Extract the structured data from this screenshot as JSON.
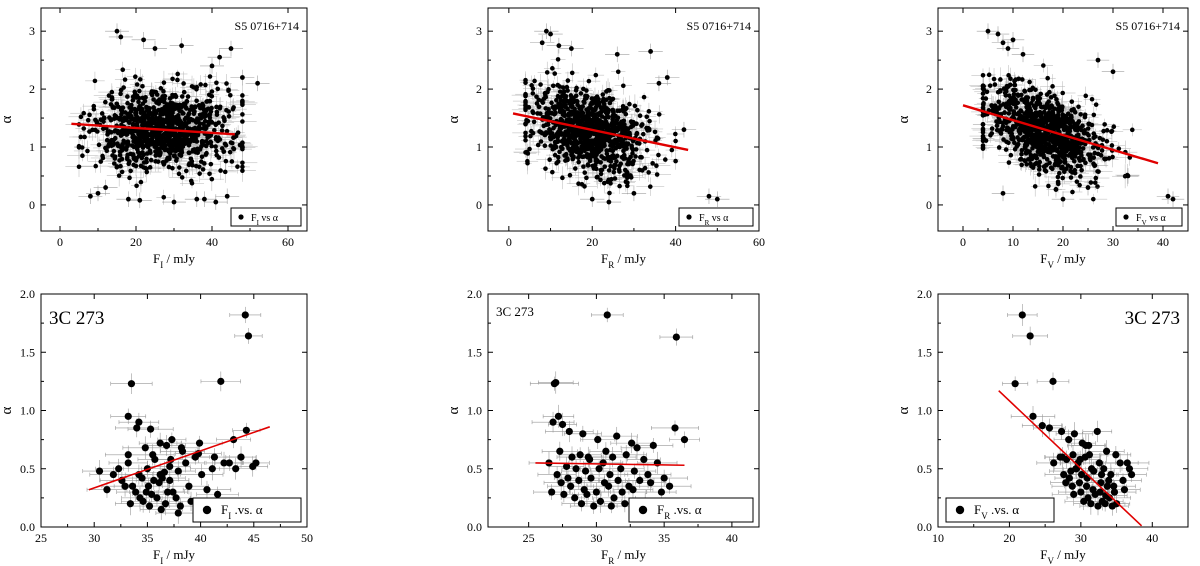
{
  "chart_data": [
    {
      "type": "scatter",
      "label": "S5 0716+714",
      "xlabel": "F_I / mJy",
      "ylabel": "α",
      "xlim": [
        -5,
        65
      ],
      "ylim": [
        -0.45,
        3.4
      ],
      "xticks": [
        0,
        20,
        40,
        60
      ],
      "yticks": [
        0,
        1,
        2,
        3
      ],
      "legend": {
        "marker": "F_I vs α",
        "placement": "bottom-right"
      },
      "cloud": {
        "n": 950,
        "x_center": 27,
        "x_sd": 9,
        "x_min": 5,
        "x_max": 48,
        "y_center": 1.3,
        "y_sd": 0.35,
        "y_min": 0.1,
        "y_max": 2.7,
        "slope": 0,
        "x_err": 3,
        "y_err": 0.15
      },
      "points": {
        "x": [
          15,
          16,
          22,
          25,
          32,
          40,
          42,
          45,
          48,
          52,
          8,
          44,
          18,
          30,
          10,
          38,
          36,
          21,
          12,
          41
        ],
        "y": [
          3.0,
          2.9,
          2.85,
          2.7,
          2.75,
          2.4,
          2.55,
          2.7,
          2.2,
          2.1,
          0.15,
          0.15,
          0.1,
          0.05,
          0.2,
          0.1,
          0.1,
          0.08,
          0.3,
          0.05
        ]
      },
      "fit": {
        "x": [
          3,
          46
        ],
        "y": [
          1.4,
          1.22
        ]
      }
    },
    {
      "type": "scatter",
      "label": "S5 0716+714",
      "xlabel": "F_R / mJy",
      "ylabel": "α",
      "xlim": [
        -5,
        60
      ],
      "ylim": [
        -0.45,
        3.4
      ],
      "xticks": [
        0,
        20,
        40,
        60
      ],
      "yticks": [
        0,
        1,
        2,
        3
      ],
      "legend": {
        "marker": "F_R vs α",
        "placement": "bottom-right"
      },
      "cloud": {
        "n": 950,
        "x_center": 19,
        "x_sd": 7,
        "x_min": 4,
        "x_max": 40,
        "y_center": 1.3,
        "y_sd": 0.35,
        "y_min": 0.1,
        "y_max": 2.7,
        "slope": -0.015,
        "x_err": 2.5,
        "y_err": 0.15
      },
      "points": {
        "x": [
          9,
          10,
          8,
          12,
          15,
          26,
          34,
          36,
          38,
          42,
          48,
          50,
          24,
          30,
          20
        ],
        "y": [
          3.0,
          2.95,
          2.8,
          2.75,
          2.7,
          2.6,
          2.65,
          2.1,
          2.2,
          1.3,
          0.15,
          0.1,
          0.05,
          0.2,
          0.1
        ]
      },
      "fit": {
        "x": [
          1,
          43
        ],
        "y": [
          1.58,
          0.95
        ]
      }
    },
    {
      "type": "scatter",
      "label": "S5 0716+714",
      "xlabel": "F_V / mJy",
      "ylabel": "α",
      "xlim": [
        -5,
        45
      ],
      "ylim": [
        -0.45,
        3.4
      ],
      "xticks": [
        0,
        10,
        20,
        30,
        40
      ],
      "yticks": [
        0,
        1,
        2,
        3
      ],
      "legend": {
        "marker": "F_V vs α",
        "placement": "bottom-right"
      },
      "cloud": {
        "n": 950,
        "x_center": 16,
        "x_sd": 6,
        "x_min": 4,
        "x_max": 37,
        "y_center": 1.3,
        "y_sd": 0.33,
        "y_min": 0.1,
        "y_max": 2.7,
        "slope": -0.03,
        "x_err": 2,
        "y_err": 0.15
      },
      "points": {
        "x": [
          5,
          7,
          8,
          9,
          10,
          12,
          27,
          30,
          33,
          41,
          42,
          8,
          20,
          25
        ],
        "y": [
          3.0,
          2.95,
          2.8,
          2.7,
          2.85,
          2.6,
          2.5,
          2.3,
          0.5,
          0.15,
          0.1,
          0.2,
          0.1,
          0.3
        ]
      },
      "fit": {
        "x": [
          0,
          39
        ],
        "y": [
          1.72,
          0.72
        ]
      }
    },
    {
      "type": "scatter",
      "label": "3C 273",
      "xlabel": "F_I / mJy",
      "ylabel": "α",
      "xlim": [
        25,
        50
      ],
      "ylim": [
        0,
        2.0
      ],
      "xticks": [
        25,
        30,
        35,
        40,
        45,
        50
      ],
      "yticks": [
        0.0,
        0.5,
        1.0,
        1.5,
        2.0
      ],
      "legend": {
        "marker": "F_I .vs. α",
        "placement": "bottom-right"
      },
      "cloud": {
        "n": 0
      },
      "points": {
        "x": [
          44.2,
          44.5,
          33.5,
          41.9,
          33.2,
          34.2,
          34.0,
          35.3,
          36.2,
          37.3,
          38.2,
          39.8,
          41.3,
          43.1,
          44.3,
          45.2,
          36.8,
          38.3,
          37.2,
          35.5,
          34.8,
          33.2,
          32.3,
          31.8,
          30.5,
          31.2,
          32.6,
          33.6,
          34.2,
          35.0,
          35.7,
          36.4,
          37.1,
          37.9,
          38.6,
          39.5,
          40.1,
          41.1,
          42.2,
          43.3,
          43.8,
          44.9,
          36.1,
          36.9,
          37.7,
          35.4,
          34.6,
          33.9,
          32.9,
          34.9,
          35.9,
          36.7,
          37.4,
          38.1,
          39.1,
          40.6,
          41.6,
          42.7,
          36.3,
          35.2,
          34.3,
          33.4,
          37.9,
          38.9,
          36.2,
          35.6,
          35.1,
          34.5,
          36.6,
          37.1,
          33.2,
          39.9
        ],
        "y": [
          1.82,
          1.64,
          1.23,
          1.25,
          0.95,
          0.9,
          0.85,
          0.84,
          0.72,
          0.75,
          0.68,
          0.63,
          0.6,
          0.75,
          0.83,
          0.55,
          0.7,
          0.65,
          0.58,
          0.62,
          0.68,
          0.55,
          0.5,
          0.45,
          0.48,
          0.32,
          0.4,
          0.35,
          0.45,
          0.5,
          0.58,
          0.42,
          0.52,
          0.48,
          0.55,
          0.6,
          0.45,
          0.5,
          0.55,
          0.5,
          0.6,
          0.52,
          0.38,
          0.3,
          0.25,
          0.28,
          0.22,
          0.3,
          0.35,
          0.3,
          0.25,
          0.2,
          0.3,
          0.18,
          0.22,
          0.32,
          0.28,
          0.55,
          0.15,
          0.18,
          0.25,
          0.2,
          0.12,
          0.35,
          0.45,
          0.4,
          0.35,
          0.42,
          0.47,
          0.4,
          0.62,
          0.72
        ]
      },
      "fit": {
        "x": [
          29.5,
          46.5
        ],
        "y": [
          0.32,
          0.86
        ]
      }
    },
    {
      "type": "scatter",
      "label": "3C 273",
      "xlabel": "F_R / mJy",
      "ylabel": "α",
      "xlim": [
        22,
        42
      ],
      "ylim": [
        0,
        2.0
      ],
      "xticks": [
        25,
        30,
        35,
        40
      ],
      "yticks": [
        0.0,
        0.5,
        1.0,
        1.5,
        2.0
      ],
      "legend": {
        "marker": "F_R .vs. α",
        "placement": "bottom-right"
      },
      "cloud": {
        "n": 0
      },
      "points": {
        "x": [
          30.8,
          35.9,
          27.0,
          26.9,
          27.2,
          26.8,
          27.5,
          28.0,
          29.0,
          30.1,
          31.5,
          32.6,
          34.2,
          35.8,
          36.5,
          33.0,
          27.3,
          28.2,
          28.8,
          29.5,
          30.5,
          31.2,
          32.2,
          33.5,
          34.5,
          26.5,
          27.8,
          28.5,
          29.2,
          30.2,
          31.0,
          31.8,
          32.8,
          33.8,
          27.1,
          27.9,
          28.7,
          29.6,
          30.6,
          31.6,
          32.4,
          33.2,
          34.0,
          35.0,
          28.1,
          29.1,
          30.0,
          30.9,
          31.9,
          32.7,
          26.7,
          27.6,
          28.4,
          29.3,
          30.3,
          31.3,
          32.1,
          29.8,
          28.9,
          31.1,
          33.6,
          27.4,
          30.7,
          34.8,
          35.4,
          29.4
        ],
        "y": [
          1.82,
          1.63,
          1.24,
          1.23,
          0.95,
          0.9,
          0.88,
          0.82,
          0.8,
          0.75,
          0.78,
          0.72,
          0.7,
          0.85,
          0.75,
          0.68,
          0.65,
          0.6,
          0.62,
          0.58,
          0.55,
          0.6,
          0.62,
          0.58,
          0.55,
          0.55,
          0.52,
          0.5,
          0.48,
          0.5,
          0.45,
          0.5,
          0.48,
          0.45,
          0.45,
          0.42,
          0.4,
          0.42,
          0.38,
          0.4,
          0.35,
          0.4,
          0.38,
          0.42,
          0.35,
          0.32,
          0.3,
          0.35,
          0.3,
          0.32,
          0.3,
          0.28,
          0.25,
          0.28,
          0.22,
          0.25,
          0.2,
          0.18,
          0.2,
          0.18,
          0.2,
          0.38,
          0.65,
          0.3,
          0.35,
          0.6
        ],
        "fit_note": ""
      },
      "fit": {
        "x": [
          25.5,
          36.5
        ],
        "y": [
          0.55,
          0.53
        ]
      }
    },
    {
      "type": "scatter",
      "label": "3C 273",
      "xlabel": "F_V / mJy",
      "ylabel": "α",
      "xlim": [
        10,
        45
      ],
      "ylim": [
        0,
        2.0
      ],
      "xticks": [
        10,
        20,
        30,
        40
      ],
      "yticks": [
        0.0,
        0.5,
        1.0,
        1.5,
        2.0
      ],
      "legend": {
        "marker": "F_V .vs. α",
        "placement": "bottom-left"
      },
      "cloud": {
        "n": 0
      },
      "points": {
        "x": [
          21.8,
          22.9,
          20.8,
          26.1,
          23.3,
          24.6,
          25.6,
          27.3,
          28.3,
          29.1,
          30.2,
          31.1,
          32.3,
          33.6,
          34.9,
          26.2,
          27.1,
          28.0,
          28.9,
          29.6,
          30.6,
          31.5,
          32.6,
          33.2,
          34.2,
          35.5,
          36.5,
          27.6,
          28.6,
          29.3,
          30.1,
          30.9,
          31.8,
          32.9,
          33.9,
          34.6,
          35.9,
          37.1,
          27.9,
          28.8,
          29.8,
          30.8,
          31.7,
          32.7,
          33.7,
          34.7,
          36.1,
          29.0,
          30.0,
          31.0,
          32.0,
          33.0,
          34.0,
          35.0,
          30.4,
          31.4,
          32.4,
          33.4,
          34.4,
          28.4,
          29.4,
          27.4,
          36.8,
          31.2,
          32.8,
          30.7,
          29.9,
          33.5
        ],
        "y": [
          1.82,
          1.64,
          1.23,
          1.25,
          0.95,
          0.87,
          0.85,
          0.82,
          0.75,
          0.8,
          0.72,
          0.7,
          0.82,
          0.65,
          0.62,
          0.55,
          0.6,
          0.58,
          0.62,
          0.55,
          0.6,
          0.5,
          0.55,
          0.5,
          0.45,
          0.55,
          0.55,
          0.45,
          0.48,
          0.5,
          0.45,
          0.42,
          0.48,
          0.45,
          0.4,
          0.35,
          0.4,
          0.45,
          0.38,
          0.35,
          0.38,
          0.35,
          0.32,
          0.3,
          0.35,
          0.3,
          0.32,
          0.28,
          0.3,
          0.25,
          0.28,
          0.22,
          0.25,
          0.2,
          0.22,
          0.2,
          0.18,
          0.2,
          0.18,
          0.42,
          0.5,
          0.6,
          0.5,
          0.62,
          0.38,
          0.7,
          0.58,
          0.27
        ]
      },
      "fit": {
        "x": [
          18.5,
          38.5
        ],
        "y": [
          1.17,
          0.01
        ]
      }
    }
  ]
}
